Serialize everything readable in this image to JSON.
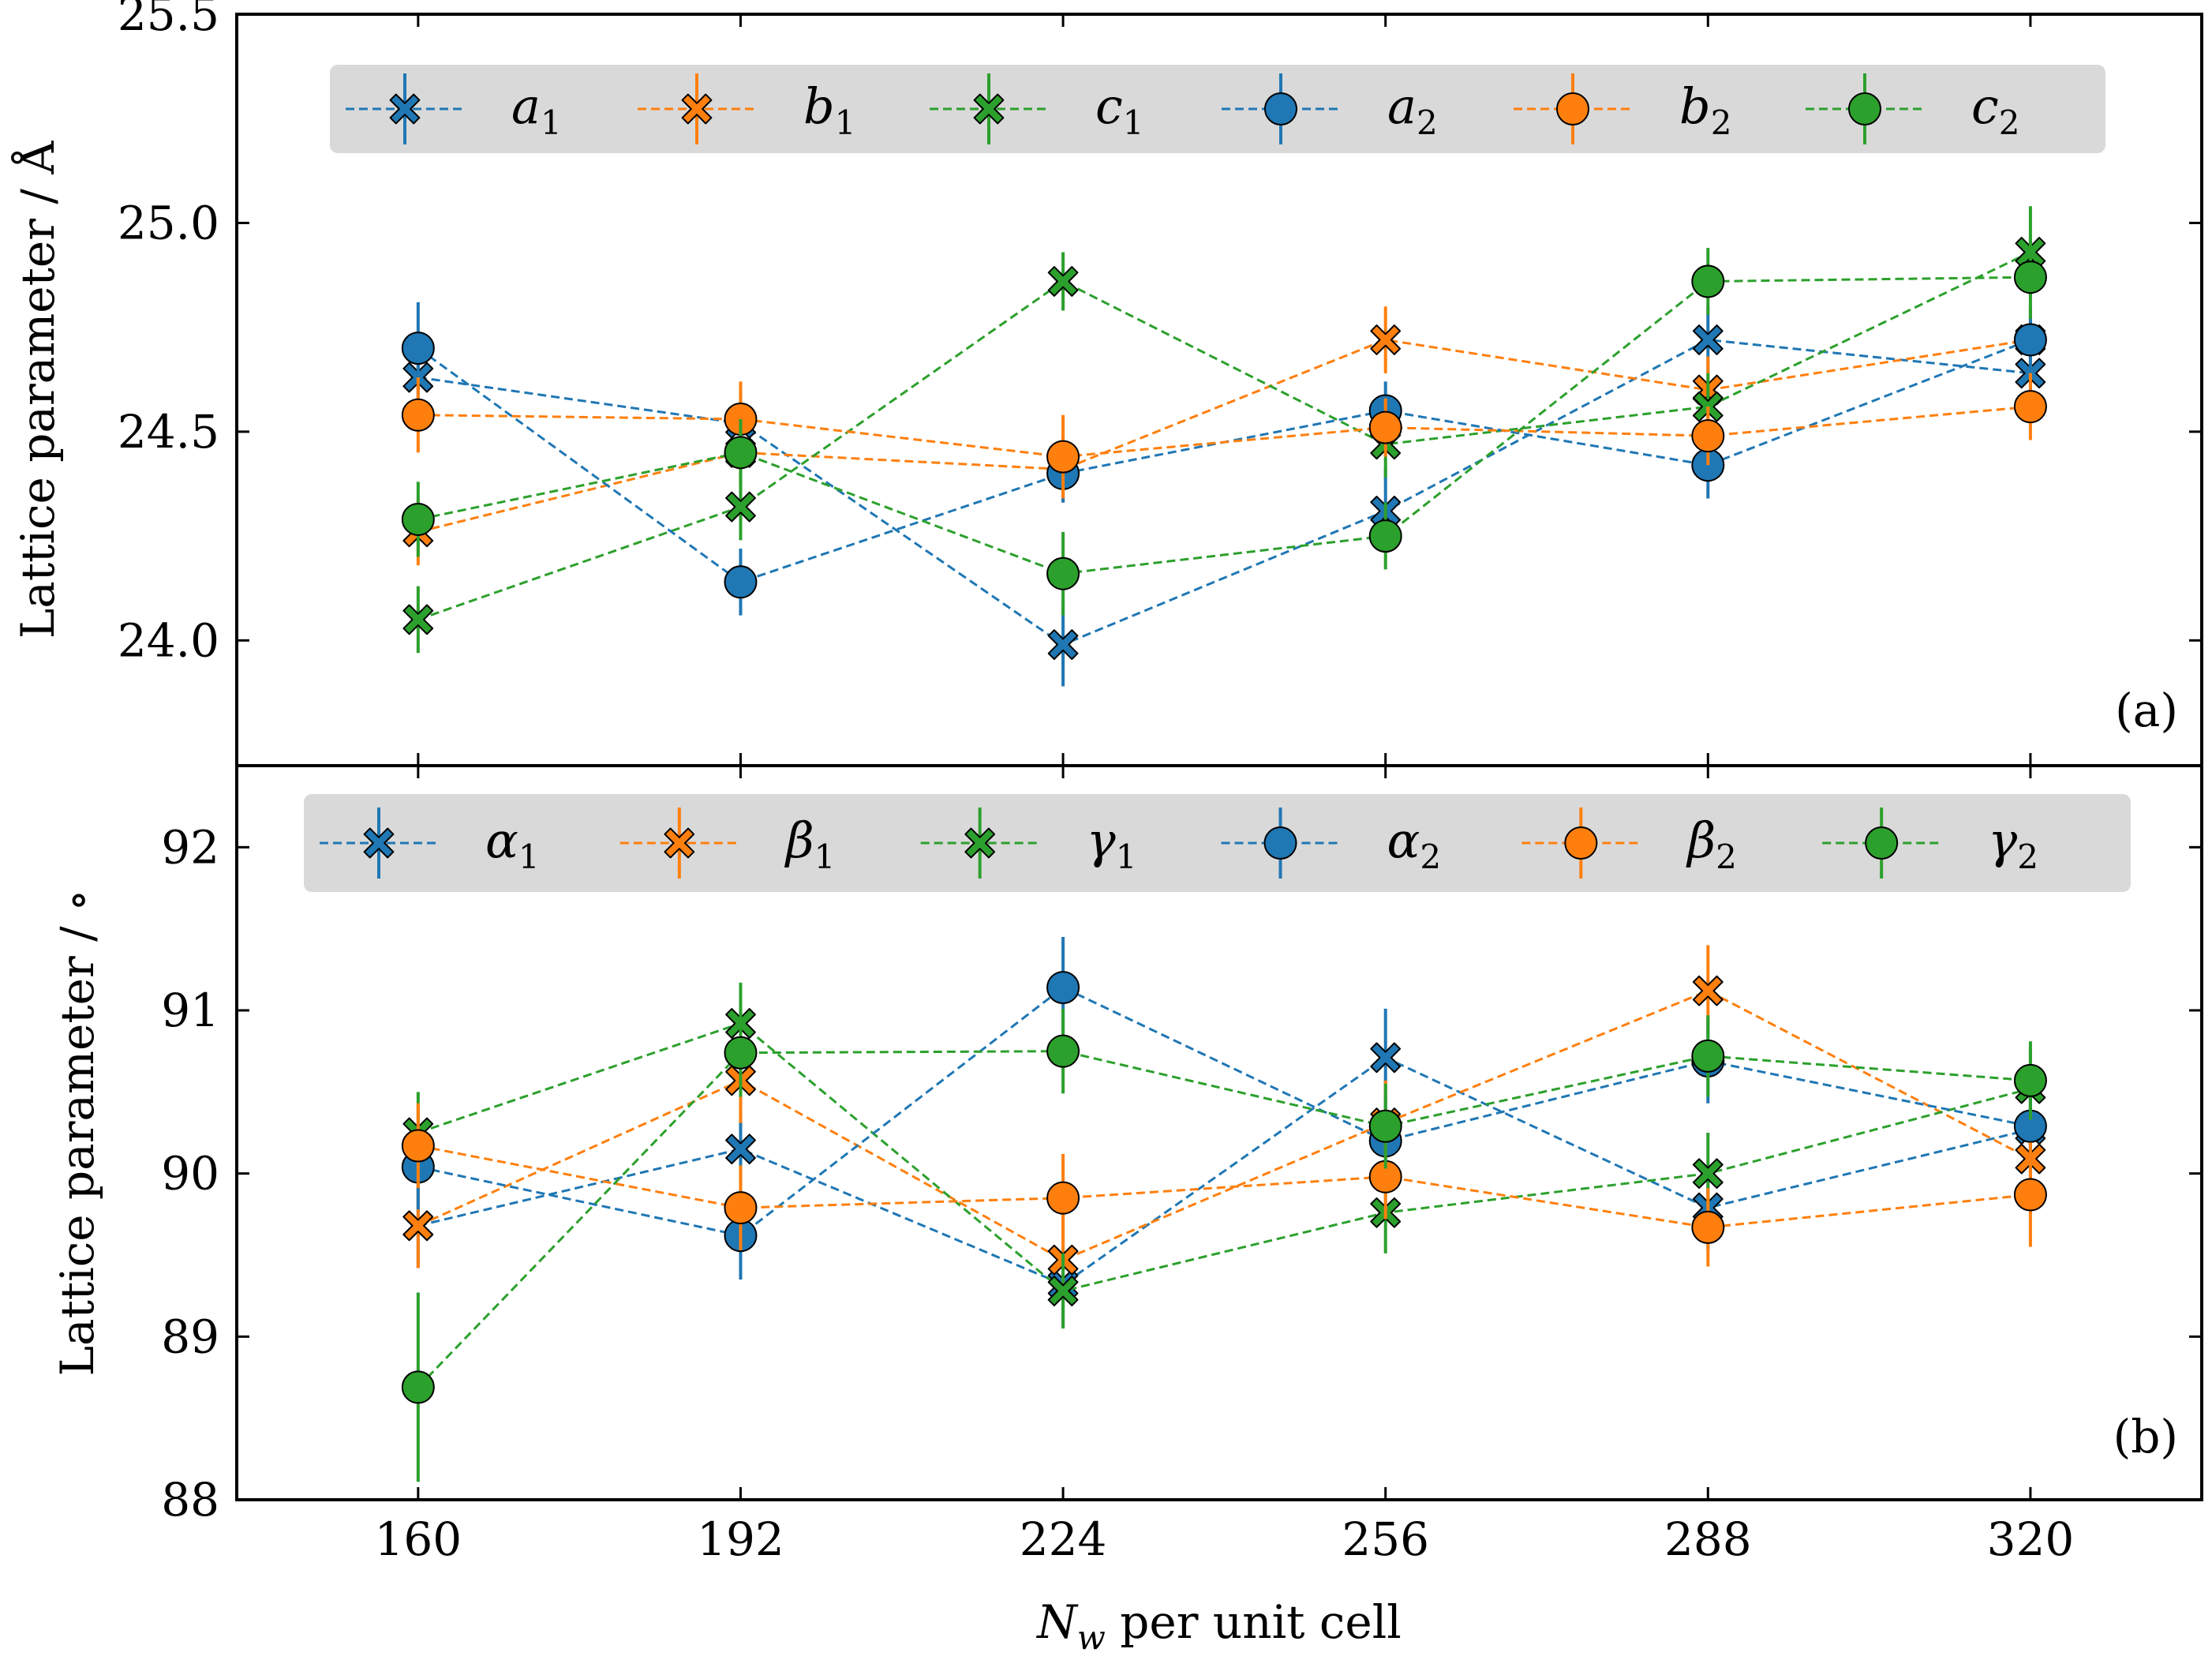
{
  "x": [
    160,
    192,
    224,
    256,
    288,
    320
  ],
  "x_tick_labels": [
    "160",
    "192",
    "224",
    "256",
    "288",
    "320"
  ],
  "x_axis": {
    "label_italic": "N",
    "label_sub": "w",
    "label_rest": " per unit cell",
    "xlim": [
      142,
      337
    ]
  },
  "colors": {
    "blue": "#1f77b4",
    "orange": "#ff7f0e",
    "green": "#2ca02c",
    "legend_bg": "#d9d9d9"
  },
  "chart_data": [
    {
      "type": "line",
      "panel_tag": "(a)",
      "ylabel": "Lattice parameter / Å",
      "ylim": [
        23.7,
        25.5
      ],
      "yticks": [
        24.0,
        24.5,
        25.0,
        25.5
      ],
      "ytick_labels": [
        "24.0",
        "24.5",
        "25.0",
        "25.5"
      ],
      "series": [
        {
          "base": "a",
          "sub": "1",
          "color": "blue",
          "marker": "x",
          "values": [
            24.63,
            24.52,
            23.99,
            24.31,
            24.72,
            24.64
          ],
          "errors": [
            0.08,
            0.08,
            0.1,
            0.1,
            0.08,
            0.08
          ]
        },
        {
          "base": "b",
          "sub": "1",
          "color": "orange",
          "marker": "x",
          "values": [
            24.26,
            24.45,
            24.41,
            24.72,
            24.6,
            24.72
          ],
          "errors": [
            0.08,
            0.08,
            0.08,
            0.08,
            0.08,
            0.08
          ]
        },
        {
          "base": "c",
          "sub": "1",
          "color": "green",
          "marker": "x",
          "values": [
            24.05,
            24.32,
            24.86,
            24.47,
            24.56,
            24.93
          ],
          "errors": [
            0.08,
            0.08,
            0.07,
            0.08,
            0.08,
            0.11
          ]
        },
        {
          "base": "a",
          "sub": "2",
          "color": "blue",
          "marker": "o",
          "values": [
            24.7,
            24.14,
            24.4,
            24.55,
            24.42,
            24.72
          ],
          "errors": [
            0.11,
            0.08,
            0.07,
            0.07,
            0.08,
            0.08
          ]
        },
        {
          "base": "b",
          "sub": "2",
          "color": "orange",
          "marker": "o",
          "values": [
            24.54,
            24.53,
            24.44,
            24.51,
            24.49,
            24.56
          ],
          "errors": [
            0.09,
            0.09,
            0.1,
            0.07,
            0.07,
            0.08
          ]
        },
        {
          "base": "c",
          "sub": "2",
          "color": "green",
          "marker": "o",
          "values": [
            24.29,
            24.45,
            24.16,
            24.25,
            24.86,
            24.87
          ],
          "errors": [
            0.09,
            0.08,
            0.1,
            0.08,
            0.08,
            0.1
          ]
        }
      ]
    },
    {
      "type": "line",
      "panel_tag": "(b)",
      "ylabel": "Lattice parameter / ∘",
      "ylim": [
        88,
        92.5
      ],
      "yticks": [
        88,
        89,
        90,
        91,
        92
      ],
      "ytick_labels": [
        "88",
        "89",
        "90",
        "91",
        "92"
      ],
      "series": [
        {
          "base": "α",
          "sub": "1",
          "color": "blue",
          "marker": "x",
          "values": [
            89.68,
            90.15,
            89.32,
            90.71,
            89.79,
            90.27
          ],
          "errors": [
            0.26,
            0.26,
            0.26,
            0.3,
            0.26,
            0.26
          ]
        },
        {
          "base": "β",
          "sub": "1",
          "color": "orange",
          "marker": "x",
          "values": [
            89.68,
            90.57,
            89.47,
            90.31,
            91.12,
            90.09
          ],
          "errors": [
            0.26,
            0.26,
            0.26,
            0.26,
            0.28,
            0.26
          ]
        },
        {
          "base": "γ",
          "sub": "1",
          "color": "green",
          "marker": "x",
          "values": [
            90.25,
            90.92,
            89.28,
            89.76,
            90.0,
            90.52
          ],
          "errors": [
            0.25,
            0.25,
            0.23,
            0.25,
            0.25,
            0.25
          ]
        },
        {
          "base": "α",
          "sub": "2",
          "color": "blue",
          "marker": "o",
          "values": [
            90.04,
            89.62,
            91.14,
            90.2,
            90.69,
            90.29
          ],
          "errors": [
            0.26,
            0.27,
            0.31,
            0.26,
            0.26,
            0.26
          ]
        },
        {
          "base": "β",
          "sub": "2",
          "color": "orange",
          "marker": "o",
          "values": [
            90.17,
            89.79,
            89.85,
            89.98,
            89.67,
            89.87
          ],
          "errors": [
            0.26,
            0.26,
            0.27,
            0.26,
            0.24,
            0.32
          ]
        },
        {
          "base": "γ",
          "sub": "2",
          "color": "green",
          "marker": "o",
          "values": [
            88.69,
            90.74,
            90.75,
            90.29,
            90.72,
            90.57
          ],
          "errors": [
            0.58,
            0.27,
            0.26,
            0.26,
            0.25,
            0.24
          ]
        }
      ]
    }
  ]
}
